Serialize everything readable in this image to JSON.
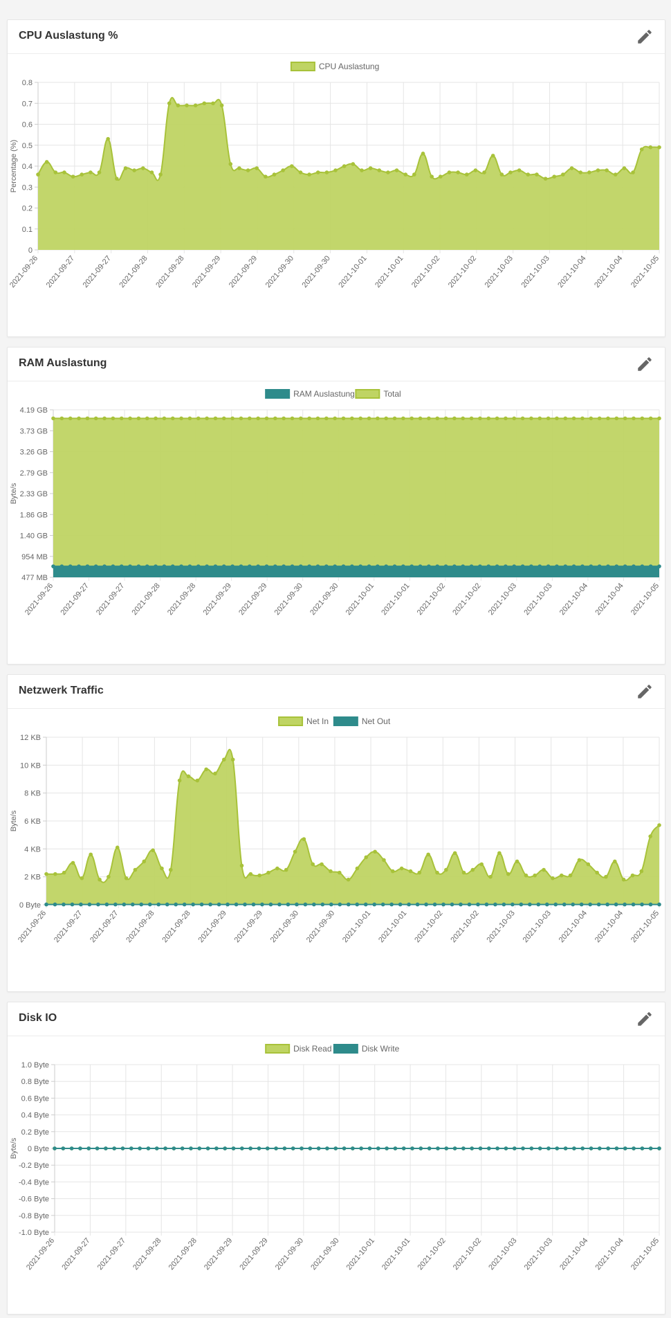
{
  "colors": {
    "green": "#a8c23a",
    "green_fill": "#bfd463",
    "teal": "#2e8b8b",
    "grid": "#e5e5e5"
  },
  "icons": {
    "edit": "pencil-icon"
  },
  "cards": [
    {
      "title": "CPU Auslastung %"
    },
    {
      "title": "RAM Auslastung"
    },
    {
      "title": "Netzwerk Traffic"
    },
    {
      "title": "Disk IO"
    }
  ],
  "chart_data": [
    {
      "type": "area",
      "title": "CPU Auslastung %",
      "ylabel": "Percentage (%)",
      "ylim": [
        0,
        0.8
      ],
      "yticks": [
        "0.8",
        "0.7",
        "0.6",
        "0.5",
        "0.4",
        "0.3",
        "0.2",
        "0.1",
        "0"
      ],
      "xticks": [
        "2021-09-26",
        "2021-09-27",
        "2021-09-27",
        "2021-09-28",
        "2021-09-28",
        "2021-09-29",
        "2021-09-29",
        "2021-09-30",
        "2021-09-30",
        "2021-10-01",
        "2021-10-01",
        "2021-10-02",
        "2021-10-02",
        "2021-10-03",
        "2021-10-03",
        "2021-10-04",
        "2021-10-04",
        "2021-10-05"
      ],
      "grid": true,
      "legend": "top-center",
      "series": [
        {
          "name": "CPU Auslastung",
          "color": "#a8c23a",
          "fill": "#bfd463",
          "values": [
            0.36,
            0.42,
            0.37,
            0.37,
            0.35,
            0.36,
            0.37,
            0.37,
            0.53,
            0.34,
            0.39,
            0.38,
            0.39,
            0.37,
            0.36,
            0.7,
            0.69,
            0.69,
            0.69,
            0.7,
            0.7,
            0.69,
            0.41,
            0.39,
            0.38,
            0.39,
            0.35,
            0.36,
            0.38,
            0.4,
            0.37,
            0.36,
            0.37,
            0.37,
            0.38,
            0.4,
            0.41,
            0.38,
            0.39,
            0.38,
            0.37,
            0.38,
            0.36,
            0.36,
            0.46,
            0.35,
            0.35,
            0.37,
            0.37,
            0.36,
            0.38,
            0.37,
            0.45,
            0.36,
            0.37,
            0.38,
            0.36,
            0.36,
            0.34,
            0.35,
            0.36,
            0.39,
            0.37,
            0.37,
            0.38,
            0.38,
            0.36,
            0.39,
            0.37,
            0.48,
            0.49,
            0.49
          ]
        }
      ]
    },
    {
      "type": "area",
      "title": "RAM Auslastung",
      "ylabel": "Byte/s",
      "ylim": [
        477,
        4190
      ],
      "yticks": [
        "4.19 GB",
        "3.73 GB",
        "3.26 GB",
        "2.79 GB",
        "2.33 GB",
        "1.86 GB",
        "1.40 GB",
        "954 MB",
        "477 MB"
      ],
      "xticks": [
        "2021-09-26",
        "2021-09-27",
        "2021-09-27",
        "2021-09-28",
        "2021-09-28",
        "2021-09-29",
        "2021-09-29",
        "2021-09-30",
        "2021-09-30",
        "2021-10-01",
        "2021-10-01",
        "2021-10-02",
        "2021-10-02",
        "2021-10-03",
        "2021-10-03",
        "2021-10-04",
        "2021-10-04",
        "2021-10-05"
      ],
      "grid": true,
      "legend": "top-center",
      "series": [
        {
          "name": "RAM Auslastung",
          "color": "#2e8b8b",
          "fill": "#2e8b8b",
          "constant": 720
        },
        {
          "name": "Total",
          "color": "#a8c23a",
          "fill": "#bfd463",
          "constant": 4000
        }
      ]
    },
    {
      "type": "area",
      "title": "Netzwerk Traffic",
      "ylabel": "Byte/s",
      "ylim": [
        0,
        12
      ],
      "yticks": [
        "12 KB",
        "10 KB",
        "8 KB",
        "6 KB",
        "4 KB",
        "2 KB",
        "0 Byte"
      ],
      "xticks": [
        "2021-09-26",
        "2021-09-27",
        "2021-09-27",
        "2021-09-28",
        "2021-09-28",
        "2021-09-29",
        "2021-09-29",
        "2021-09-30",
        "2021-09-30",
        "2021-10-01",
        "2021-10-01",
        "2021-10-02",
        "2021-10-02",
        "2021-10-03",
        "2021-10-03",
        "2021-10-04",
        "2021-10-04",
        "2021-10-05"
      ],
      "grid": true,
      "legend": "top-center",
      "series": [
        {
          "name": "Net In",
          "color": "#a8c23a",
          "fill": "#bfd463",
          "values": [
            2.2,
            2.2,
            2.3,
            3.0,
            1.9,
            3.6,
            1.8,
            2.0,
            4.1,
            1.9,
            2.5,
            3.1,
            3.9,
            2.6,
            2.5,
            8.9,
            9.2,
            8.9,
            9.7,
            9.4,
            10.4,
            10.4,
            2.8,
            2.2,
            2.1,
            2.3,
            2.6,
            2.5,
            3.8,
            4.7,
            2.9,
            2.9,
            2.4,
            2.3,
            1.8,
            2.6,
            3.4,
            3.8,
            3.2,
            2.4,
            2.6,
            2.4,
            2.3,
            3.6,
            2.3,
            2.5,
            3.7,
            2.3,
            2.5,
            2.9,
            2.0,
            3.7,
            2.2,
            3.1,
            2.1,
            2.1,
            2.5,
            1.9,
            2.1,
            2.1,
            3.2,
            2.9,
            2.3,
            2.0,
            3.1,
            1.8,
            2.1,
            2.4,
            4.9,
            5.7
          ]
        },
        {
          "name": "Net Out",
          "color": "#2e8b8b",
          "fill": "#2e8b8b",
          "constant": 0.02
        }
      ]
    },
    {
      "type": "line",
      "title": "Disk IO",
      "ylabel": "Byte/s",
      "ylim": [
        -1,
        1
      ],
      "yticks": [
        "1.0 Byte",
        "0.8 Byte",
        "0.6 Byte",
        "0.4 Byte",
        "0.2 Byte",
        "0 Byte",
        "-0.2 Byte",
        "-0.4 Byte",
        "-0.6 Byte",
        "-0.8 Byte",
        "-1.0 Byte"
      ],
      "xticks": [
        "2021-09-26",
        "2021-09-27",
        "2021-09-27",
        "2021-09-28",
        "2021-09-28",
        "2021-09-29",
        "2021-09-29",
        "2021-09-30",
        "2021-09-30",
        "2021-10-01",
        "2021-10-01",
        "2021-10-02",
        "2021-10-02",
        "2021-10-03",
        "2021-10-03",
        "2021-10-04",
        "2021-10-04",
        "2021-10-05"
      ],
      "grid": true,
      "legend": "top-center",
      "series": [
        {
          "name": "Disk Read",
          "color": "#a8c23a",
          "fill": "#bfd463",
          "constant": 0
        },
        {
          "name": "Disk Write",
          "color": "#2e8b8b",
          "fill": "#2e8b8b",
          "constant": 0
        }
      ]
    }
  ]
}
